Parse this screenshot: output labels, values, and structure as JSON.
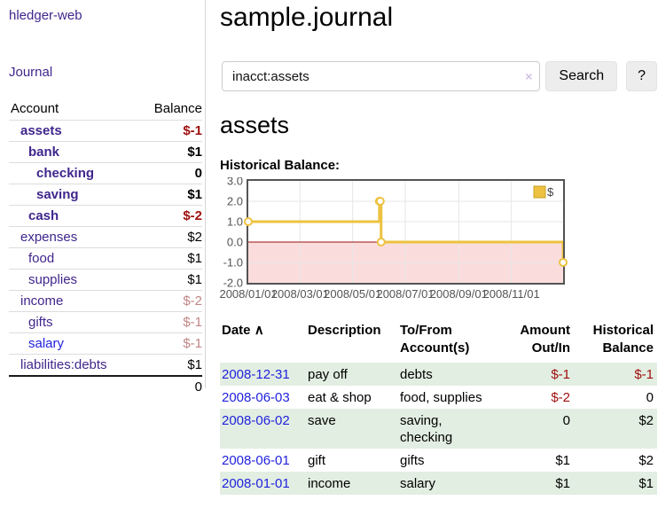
{
  "app": {
    "brand": "hledger-web",
    "nav_journal_label": "Journal"
  },
  "colors": {
    "link_purple": "#40268c",
    "link_blue": "#2222dd",
    "negative_strong": "#a01010",
    "negative_soft": "#c08585",
    "row_stripe_green": "#e2eee2",
    "button_bg": "#ededed",
    "chart_line": "#edc240",
    "chart_negative_fill": "#fbdcdc",
    "chart_zero_line": "#991111",
    "chart_border": "#545454",
    "chart_grid": "#e6e6e6"
  },
  "sidebar": {
    "header": {
      "account": "Account",
      "balance": "Balance"
    },
    "accounts": [
      {
        "name": "assets",
        "balance": "$-1",
        "depth": 1,
        "bold": true,
        "neg": "strong"
      },
      {
        "name": "bank",
        "balance": "$1",
        "depth": 2,
        "bold": true,
        "neg": ""
      },
      {
        "name": "checking",
        "balance": "0",
        "depth": 3,
        "bold": true,
        "neg": ""
      },
      {
        "name": "saving",
        "balance": "$1",
        "depth": 3,
        "bold": true,
        "neg": ""
      },
      {
        "name": "cash",
        "balance": "$-2",
        "depth": 2,
        "bold": true,
        "neg": "strong"
      },
      {
        "name": "expenses",
        "balance": "$2",
        "depth": 1,
        "bold": false,
        "neg": ""
      },
      {
        "name": "food",
        "balance": "$1",
        "depth": 2,
        "bold": false,
        "neg": ""
      },
      {
        "name": "supplies",
        "balance": "$1",
        "depth": 2,
        "bold": false,
        "neg": ""
      },
      {
        "name": "income",
        "balance": "$-2",
        "depth": 1,
        "bold": false,
        "neg": "soft"
      },
      {
        "name": "gifts",
        "balance": "$-1",
        "depth": 2,
        "bold": false,
        "neg": "soft"
      },
      {
        "name": "salary",
        "balance": "$-1",
        "depth": 2,
        "bold": false,
        "neg": "soft",
        "link": "blue"
      },
      {
        "name": "liabilities:debts",
        "balance": "$1",
        "depth": 1,
        "bold": false,
        "neg": ""
      }
    ],
    "total": "0"
  },
  "header": {
    "title": "sample.journal"
  },
  "search": {
    "value": "inacct:assets",
    "clear_icon": "×",
    "search_button": "Search",
    "help_button": "?"
  },
  "account_page": {
    "title": "assets",
    "chart_label": "Historical Balance:"
  },
  "chart_data": {
    "type": "line",
    "title": "Historical Balance",
    "steps": true,
    "series": [
      {
        "name": "$",
        "color": "#edc240",
        "points": [
          {
            "date": "2008/01/01",
            "day": 0,
            "value": 1
          },
          {
            "date": "2008/06/01",
            "day": 152,
            "value": 2
          },
          {
            "date": "2008/06/02",
            "day": 153,
            "value": 2
          },
          {
            "date": "2008/06/03",
            "day": 154,
            "value": 0
          },
          {
            "date": "2008/12/31",
            "day": 365,
            "value": -1
          }
        ]
      }
    ],
    "x_range_days": [
      0,
      365
    ],
    "x_ticks": [
      {
        "label": "2008/01/01",
        "day": 0
      },
      {
        "label": "2008/03/01",
        "day": 60
      },
      {
        "label": "2008/05/01",
        "day": 121
      },
      {
        "label": "2008/07/01",
        "day": 182
      },
      {
        "label": "2008/09/01",
        "day": 244
      },
      {
        "label": "2008/11/01",
        "day": 305
      }
    ],
    "y_ticks": [
      3.0,
      2.0,
      1.0,
      0.0,
      -1.0,
      -2.0
    ],
    "ylim": [
      -2,
      3
    ],
    "grid": true,
    "legend": {
      "label": "$",
      "position": "top-right"
    },
    "negative_region_color": "#fbdcdc",
    "zero_line_color": "#991111"
  },
  "register": {
    "columns": [
      {
        "label": "Date",
        "sort_icon": "∧",
        "align": "left"
      },
      {
        "label": "Description",
        "align": "left"
      },
      {
        "label": "To/From Account(s)",
        "align": "left"
      },
      {
        "label": "Amount Out/In",
        "align": "right"
      },
      {
        "label": "Historical Balance",
        "align": "right"
      }
    ],
    "rows": [
      {
        "date": "2008-12-31",
        "description": "pay off",
        "accounts": "debts",
        "amount": "$-1",
        "amount_neg": true,
        "balance": "$-1",
        "balance_neg": true,
        "stripe": true
      },
      {
        "date": "2008-06-03",
        "description": "eat & shop",
        "accounts": "food, supplies",
        "amount": "$-2",
        "amount_neg": true,
        "balance": "0",
        "balance_neg": false,
        "stripe": false
      },
      {
        "date": "2008-06-02",
        "description": "save",
        "accounts": "saving, checking",
        "amount": "0",
        "amount_neg": false,
        "balance": "$2",
        "balance_neg": false,
        "stripe": true
      },
      {
        "date": "2008-06-01",
        "description": "gift",
        "accounts": "gifts",
        "amount": "$1",
        "amount_neg": false,
        "balance": "$2",
        "balance_neg": false,
        "stripe": false
      },
      {
        "date": "2008-01-01",
        "description": "income",
        "accounts": "salary",
        "amount": "$1",
        "amount_neg": false,
        "balance": "$1",
        "balance_neg": false,
        "stripe": true
      }
    ]
  }
}
